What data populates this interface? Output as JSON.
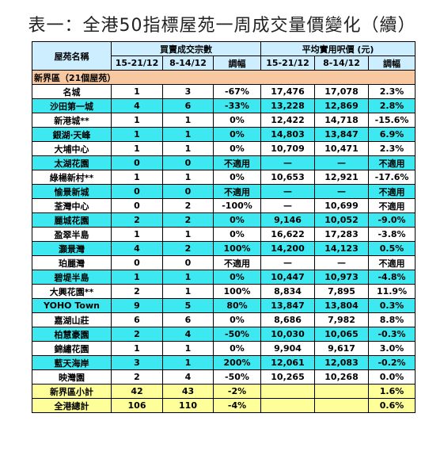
{
  "title": "表一：全港50指標屋苑一周成交量價變化（續）",
  "headers": {
    "estate": "屋苑名稱",
    "volume": "買賣成交宗數",
    "price": "平均實用呎價 (元)",
    "period1": "15-21/12",
    "period2": "8-14/12",
    "change": "調幅"
  },
  "region": "新界區（21個屋苑）",
  "rows": [
    {
      "name": "名城",
      "v1": "1",
      "v2": "3",
      "vc": "-67%",
      "p1": "17,476",
      "p2": "17,078",
      "pc": "2.3%"
    },
    {
      "name": "沙田第一城",
      "v1": "4",
      "v2": "6",
      "vc": "-33%",
      "p1": "13,228",
      "p2": "12,869",
      "pc": "2.8%"
    },
    {
      "name": "新港城**",
      "v1": "1",
      "v2": "1",
      "vc": "0%",
      "p1": "12,422",
      "p2": "14,718",
      "pc": "-15.6%"
    },
    {
      "name": "銀湖‧天峰",
      "v1": "1",
      "v2": "1",
      "vc": "0%",
      "p1": "14,803",
      "p2": "13,847",
      "pc": "6.9%"
    },
    {
      "name": "大埔中心",
      "v1": "1",
      "v2": "1",
      "vc": "0%",
      "p1": "10,709",
      "p2": "10,471",
      "pc": "2.3%"
    },
    {
      "name": "太湖花園",
      "v1": "0",
      "v2": "0",
      "vc": "不適用",
      "p1": "—",
      "p2": "—",
      "pc": "不適用"
    },
    {
      "name": "綠楊新村**",
      "v1": "1",
      "v2": "1",
      "vc": "0%",
      "p1": "10,653",
      "p2": "12,921",
      "pc": "-17.6%"
    },
    {
      "name": "愉景新城",
      "v1": "0",
      "v2": "0",
      "vc": "不適用",
      "p1": "—",
      "p2": "—",
      "pc": "不適用"
    },
    {
      "name": "荃灣中心",
      "v1": "0",
      "v2": "2",
      "vc": "-100%",
      "p1": "—",
      "p2": "10,699",
      "pc": "不適用"
    },
    {
      "name": "麗城花園",
      "v1": "2",
      "v2": "2",
      "vc": "0%",
      "p1": "9,146",
      "p2": "10,052",
      "pc": "-9.0%"
    },
    {
      "name": "盈翠半島",
      "v1": "1",
      "v2": "1",
      "vc": "0%",
      "p1": "16,622",
      "p2": "17,283",
      "pc": "-3.8%"
    },
    {
      "name": "灝景灣",
      "v1": "4",
      "v2": "2",
      "vc": "100%",
      "p1": "14,200",
      "p2": "14,123",
      "pc": "0.5%"
    },
    {
      "name": "珀麗灣",
      "v1": "0",
      "v2": "0",
      "vc": "不適用",
      "p1": "—",
      "p2": "—",
      "pc": "不適用"
    },
    {
      "name": "碧堤半島",
      "v1": "1",
      "v2": "1",
      "vc": "0%",
      "p1": "10,447",
      "p2": "10,973",
      "pc": "-4.8%"
    },
    {
      "name": "大興花園**",
      "v1": "2",
      "v2": "1",
      "vc": "100%",
      "p1": "8,834",
      "p2": "7,895",
      "pc": "11.9%"
    },
    {
      "name": "YOHO Town",
      "v1": "9",
      "v2": "5",
      "vc": "80%",
      "p1": "13,847",
      "p2": "13,804",
      "pc": "0.3%"
    },
    {
      "name": "嘉湖山莊",
      "v1": "6",
      "v2": "6",
      "vc": "0%",
      "p1": "8,686",
      "p2": "7,982",
      "pc": "8.8%"
    },
    {
      "name": "柏慧豪園",
      "v1": "2",
      "v2": "4",
      "vc": "-50%",
      "p1": "10,030",
      "p2": "10,065",
      "pc": "-0.3%"
    },
    {
      "name": "錦繡花園",
      "v1": "1",
      "v2": "1",
      "vc": "0%",
      "p1": "9,904",
      "p2": "9,617",
      "pc": "3.0%"
    },
    {
      "name": "藍天海岸",
      "v1": "3",
      "v2": "1",
      "vc": "200%",
      "p1": "12,061",
      "p2": "12,083",
      "pc": "-0.2%"
    },
    {
      "name": "映灣園",
      "v1": "2",
      "v2": "4",
      "vc": "-50%",
      "p1": "10,265",
      "p2": "10,268",
      "pc": "0.0%"
    }
  ],
  "subtotal": {
    "name": "新界區小計",
    "v1": "42",
    "v2": "43",
    "vc": "-2%",
    "p1": "",
    "p2": "",
    "pc": "1.6%"
  },
  "total": {
    "name": "全港總計",
    "v1": "106",
    "v2": "110",
    "vc": "-4%",
    "p1": "",
    "p2": "",
    "pc": "0.6%"
  },
  "colors": {
    "header": "#cceeff",
    "region": "#f8c8a0",
    "cyan_row": "#3ee8f0",
    "white_row": "#ffffff",
    "summary": "#ffff99"
  }
}
